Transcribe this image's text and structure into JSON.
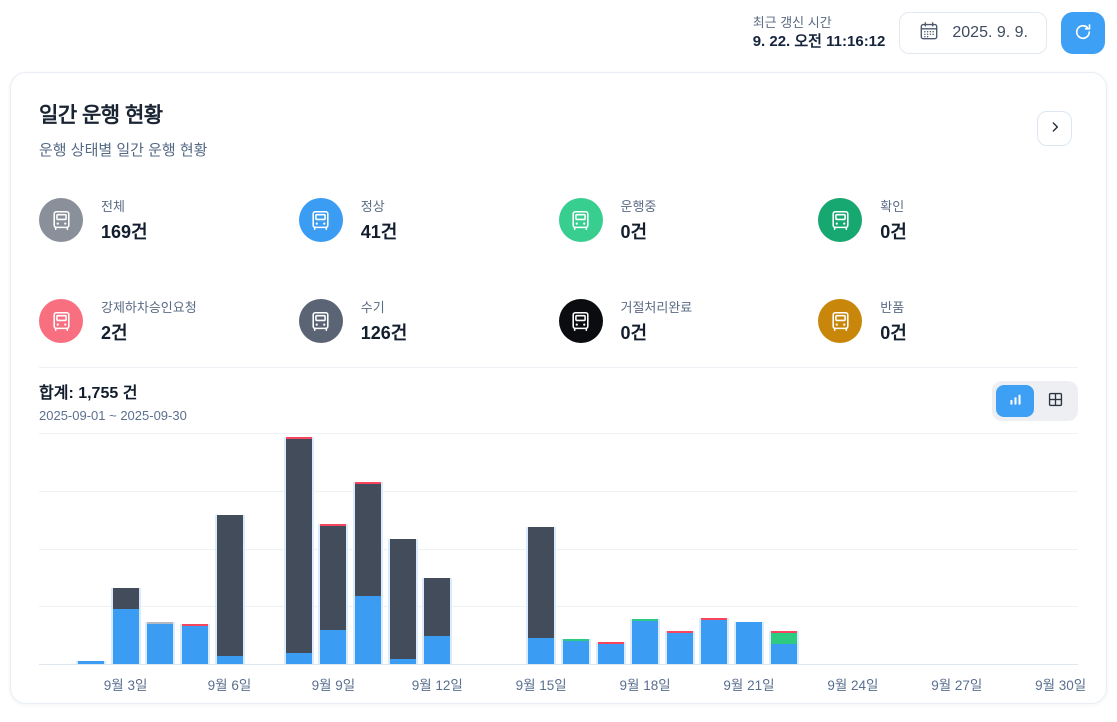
{
  "topbar": {
    "updated_label": "최근 갱신 시간",
    "updated_time": "9. 22. 오전 11:16:12",
    "date_value": "2025. 9. 9.",
    "calendar_icon": "calendar-icon",
    "refresh_icon": "refresh-icon",
    "accent_color": "#3da0f5"
  },
  "card": {
    "title": "일간 운행 현황",
    "subtitle": "운행 상태별 일간 운행 현황",
    "chevron_icon": "chevron-right-icon",
    "tiles": [
      {
        "label": "전체",
        "value": "169건",
        "icon": "truck-icon",
        "color": "#8a9099"
      },
      {
        "label": "정상",
        "value": "41건",
        "icon": "truck-icon",
        "color": "#3b9cf4"
      },
      {
        "label": "운행중",
        "value": "0건",
        "icon": "truck-icon",
        "color": "#38ce90"
      },
      {
        "label": "확인",
        "value": "0건",
        "icon": "truck-icon",
        "color": "#17a771"
      },
      {
        "label": "강제하차승인요청",
        "value": "2건",
        "icon": "truck-icon",
        "color": "#f87080"
      },
      {
        "label": "수기",
        "value": "126건",
        "icon": "truck-icon",
        "color": "#5a6474"
      },
      {
        "label": "거절처리완료",
        "value": "0건",
        "icon": "truck-icon",
        "color": "#0a0c10"
      },
      {
        "label": "반품",
        "value": "0건",
        "icon": "truck-icon",
        "color": "#c8860b"
      }
    ],
    "summary": {
      "total": "합계: 1,755 건",
      "range": "2025-09-01 ~ 2025-09-30"
    },
    "view_toggle": {
      "active": "chart",
      "chart_icon": "bar-chart-icon",
      "table_icon": "table-grid-icon"
    }
  },
  "chart_data": {
    "type": "bar",
    "stacked": true,
    "x": [
      1,
      2,
      3,
      4,
      5,
      6,
      7,
      8,
      9,
      10,
      11,
      12,
      13,
      14,
      15,
      16,
      17,
      18,
      19,
      20,
      21,
      22,
      23,
      24,
      25,
      26,
      27,
      28,
      29,
      30
    ],
    "x_unit": "2025년 9월 일자",
    "x_ticks": [
      {
        "day": 3,
        "label": "9월 3일"
      },
      {
        "day": 6,
        "label": "9월 6일"
      },
      {
        "day": 9,
        "label": "9월 9일"
      },
      {
        "day": 12,
        "label": "9월 12일"
      },
      {
        "day": 15,
        "label": "9월 15일"
      },
      {
        "day": 18,
        "label": "9월 18일"
      },
      {
        "day": 21,
        "label": "9월 21일"
      },
      {
        "day": 24,
        "label": "9월 24일"
      },
      {
        "day": 27,
        "label": "9월 27일"
      },
      {
        "day": 30,
        "label": "9월 30일"
      }
    ],
    "ylim": [
      0,
      280
    ],
    "gridline_count": 5,
    "legend_visible": false,
    "total_count": 1755,
    "series": [
      {
        "name": "blue",
        "color": "#3b9cf4",
        "values": [
          0,
          4,
          67,
          49,
          46,
          10,
          0,
          13,
          41,
          83,
          6,
          34,
          0,
          0,
          32,
          28,
          24,
          52,
          37,
          53,
          51,
          24,
          0,
          0,
          0,
          0,
          0,
          0,
          0,
          0
        ]
      },
      {
        "name": "dark-slate",
        "color": "#424c5a",
        "values": [
          0,
          0,
          25,
          0,
          0,
          171,
          0,
          260,
          126,
          135,
          145,
          70,
          0,
          0,
          134,
          0,
          0,
          0,
          0,
          0,
          0,
          0,
          0,
          0,
          0,
          0,
          0,
          0,
          0,
          0
        ]
      },
      {
        "name": "light-gray",
        "color": "#b3b9c1",
        "values": [
          0,
          0,
          0,
          2,
          0,
          0,
          0,
          0,
          0,
          0,
          0,
          0,
          0,
          0,
          0,
          0,
          0,
          0,
          0,
          0,
          0,
          0,
          0,
          0,
          0,
          0,
          0,
          0,
          0,
          0
        ]
      },
      {
        "name": "green",
        "color": "#2dcb82",
        "values": [
          0,
          0,
          0,
          0,
          0,
          0,
          0,
          0,
          0,
          0,
          0,
          0,
          0,
          0,
          0,
          2,
          0,
          2,
          0,
          0,
          0,
          13,
          0,
          0,
          0,
          0,
          0,
          0,
          0,
          0
        ]
      },
      {
        "name": "red",
        "color": "#f5465d",
        "values": [
          0,
          0,
          0,
          0,
          2,
          0,
          0,
          2,
          2,
          2,
          0,
          0,
          0,
          0,
          0,
          0,
          2,
          0,
          2,
          2,
          0,
          2,
          0,
          0,
          0,
          0,
          0,
          0,
          0,
          0
        ]
      }
    ]
  }
}
